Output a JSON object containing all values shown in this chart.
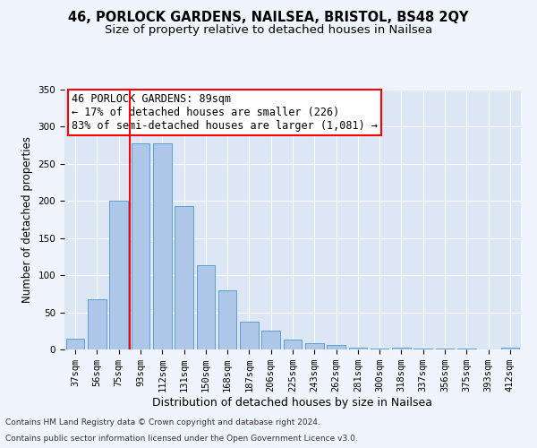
{
  "title1": "46, PORLOCK GARDENS, NAILSEA, BRISTOL, BS48 2QY",
  "title2": "Size of property relative to detached houses in Nailsea",
  "xlabel": "Distribution of detached houses by size in Nailsea",
  "ylabel": "Number of detached properties",
  "footnote1": "Contains HM Land Registry data © Crown copyright and database right 2024.",
  "footnote2": "Contains public sector information licensed under the Open Government Licence v3.0.",
  "annotation_line1": "46 PORLOCK GARDENS: 89sqm",
  "annotation_line2": "← 17% of detached houses are smaller (226)",
  "annotation_line3": "83% of semi-detached houses are larger (1,081) →",
  "bar_labels": [
    "37sqm",
    "56sqm",
    "75sqm",
    "93sqm",
    "112sqm",
    "131sqm",
    "150sqm",
    "168sqm",
    "187sqm",
    "206sqm",
    "225sqm",
    "243sqm",
    "262sqm",
    "281sqm",
    "300sqm",
    "318sqm",
    "337sqm",
    "356sqm",
    "375sqm",
    "393sqm",
    "412sqm"
  ],
  "bar_values": [
    15,
    68,
    200,
    278,
    278,
    193,
    113,
    80,
    38,
    25,
    13,
    8,
    6,
    3,
    1,
    2,
    1,
    1,
    1,
    0,
    2
  ],
  "bar_color": "#aec6e8",
  "bar_edge_color": "#5a9fd4",
  "red_line_x": 2.5,
  "ylim": [
    0,
    350
  ],
  "yticks": [
    0,
    50,
    100,
    150,
    200,
    250,
    300,
    350
  ],
  "fig_bg_color": "#f0f4fc",
  "plot_bg_color": "#dce6f5",
  "grid_color": "#ffffff",
  "title_fontsize": 10.5,
  "subtitle_fontsize": 9.5,
  "xlabel_fontsize": 9,
  "ylabel_fontsize": 8.5,
  "tick_fontsize": 7.5,
  "annotation_fontsize": 8.5,
  "footnote_fontsize": 6.5
}
